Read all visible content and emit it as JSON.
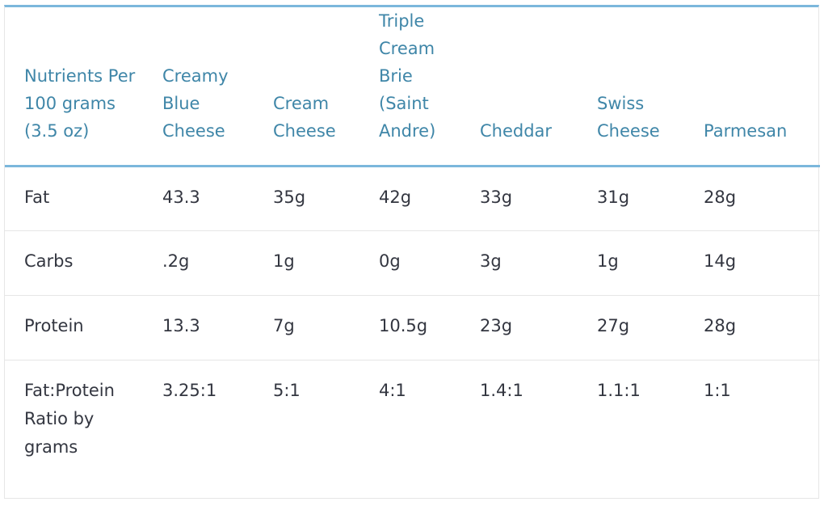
{
  "table": {
    "headers": [
      "Nutrients Per 100 grams (3.5 oz)",
      "Creamy Blue Cheese",
      "Cream Cheese",
      "Triple Cream Brie (Saint Andre)",
      "Cheddar",
      "Swiss Cheese",
      "Parmesan"
    ],
    "rows": [
      [
        "Fat",
        "43.3",
        "35g",
        "42g",
        "33g",
        "31g",
        "28g"
      ],
      [
        "Carbs",
        ".2g",
        "1g",
        "0g",
        "3g",
        "1g",
        "14g"
      ],
      [
        "Protein",
        "13.3",
        "7g",
        "10.5g",
        "23g",
        "27g",
        "28g"
      ],
      [
        "Fat:Protein Ratio by grams",
        "3.25:1",
        "5:1",
        "4:1",
        "1.4:1",
        "1.1:1",
        "1:1"
      ]
    ]
  },
  "colors": {
    "header_text": "#3f86a8",
    "accent_border": "#7bb7dc",
    "body_text": "#333640",
    "row_border": "#e6e6e6"
  }
}
